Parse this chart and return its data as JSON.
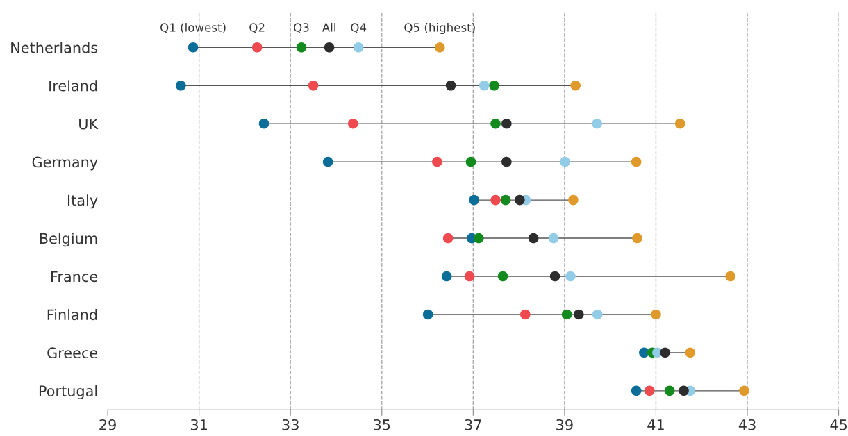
{
  "chart_data": {
    "type": "scatter",
    "orientation": "horizontal",
    "categories": [
      "Netherlands",
      "Ireland",
      "UK",
      "Germany",
      "Italy",
      "Belgium",
      "France",
      "Finland",
      "Greece",
      "Portugal"
    ],
    "series": [
      {
        "name": "Q1 (lowest)",
        "color": "#0b6e99",
        "values": [
          30.87,
          30.6,
          32.42,
          33.82,
          37.02,
          36.97,
          36.42,
          36.01,
          40.74,
          40.57
        ]
      },
      {
        "name": "Q2",
        "color": "#ee4a4f",
        "values": [
          32.27,
          33.5,
          34.37,
          36.21,
          37.49,
          36.45,
          36.92,
          38.14,
          null,
          40.86
        ]
      },
      {
        "name": "Q3",
        "color": "#138a1e",
        "values": [
          33.24,
          37.46,
          37.49,
          36.95,
          37.71,
          37.12,
          37.65,
          39.05,
          40.92,
          41.3
        ]
      },
      {
        "name": "Q4",
        "color": "#93cce6",
        "values": [
          34.49,
          37.24,
          39.71,
          39.01,
          38.15,
          38.76,
          39.13,
          39.72,
          41.03,
          41.75
        ]
      },
      {
        "name": "Q5 (highest)",
        "color": "#e09a2b",
        "values": [
          36.27,
          39.24,
          41.53,
          40.57,
          39.19,
          40.59,
          42.63,
          41.0,
          41.75,
          42.93
        ]
      },
      {
        "name": "All",
        "color": "#2d2d2d",
        "values": [
          33.85,
          36.51,
          37.73,
          37.73,
          38.02,
          38.32,
          38.79,
          39.31,
          41.2,
          41.61
        ]
      }
    ],
    "xlim": [
      29,
      45
    ],
    "xticks": [
      29,
      31,
      33,
      35,
      37,
      39,
      41,
      43,
      45
    ],
    "grid": "x",
    "legend": false,
    "marker": "circle"
  }
}
